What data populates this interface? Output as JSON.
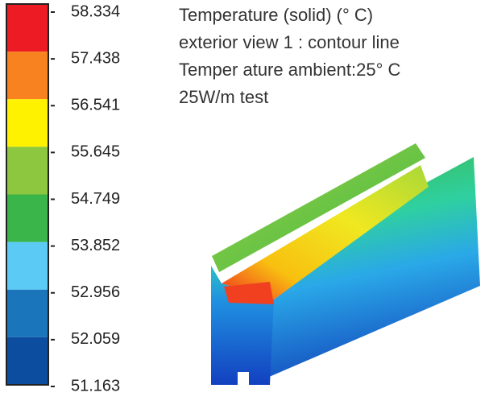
{
  "header": {
    "lines": [
      "Temperature (solid) (° C)",
      "exterior view 1 : contour line",
      "Temper ature ambient:25° C",
      "25W/m test"
    ]
  },
  "legend": {
    "labels": [
      "58.334",
      "57.438",
      "56.541",
      "55.645",
      "54.749",
      "53.852",
      "52.956",
      "52.059",
      "51.163"
    ],
    "colors": [
      "#ed1c24",
      "#f7821f",
      "#fff200",
      "#8dc63f",
      "#3ab54a",
      "#5bcbf5",
      "#1b75bb",
      "#0c4d9f"
    ]
  }
}
